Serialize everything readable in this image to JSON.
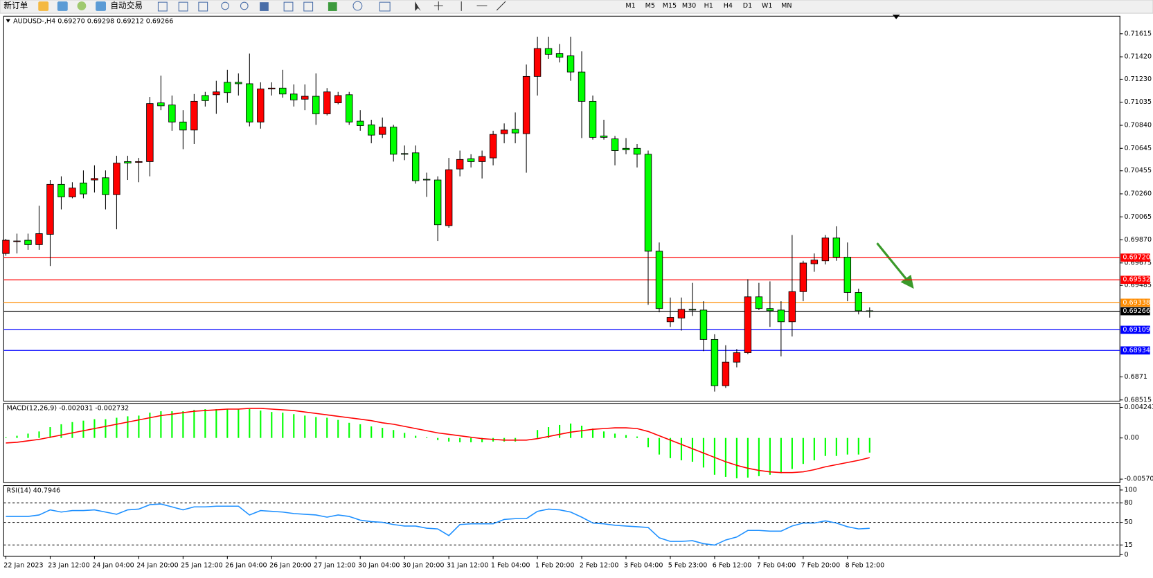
{
  "toolbar": {
    "new_order": "新订单",
    "auto_trading": "自动交易",
    "timeframes": [
      "M1",
      "M5",
      "M15",
      "M30",
      "H1",
      "H4",
      "D1",
      "W1",
      "MN"
    ]
  },
  "chart_data": [
    {
      "type": "candlestick",
      "title": "AUDUSD-,H4  0.69270 0.69298 0.69212 0.69266",
      "categories": [
        "22 Jan 2023",
        null,
        null,
        null,
        "23 Jan 12:00",
        null,
        null,
        null,
        "24 Jan 04:00",
        null,
        null,
        null,
        "24 Jan 20:00",
        null,
        null,
        null,
        "25 Jan 12:00",
        null,
        null,
        null,
        "26 Jan 04:00",
        null,
        null,
        null,
        "26 Jan 20:00",
        null,
        null,
        null,
        "27 Jan 12:00",
        null,
        null,
        null,
        "30 Jan 04:00",
        null,
        null,
        null,
        "30 Jan 20:00",
        null,
        null,
        null,
        "31 Jan 12:00",
        null,
        null,
        null,
        "1 Feb 04:00",
        null,
        null,
        null,
        "1 Feb 20:00",
        null,
        null,
        null,
        "2 Feb 12:00",
        null,
        null,
        null,
        "3 Feb 04:00",
        null,
        null,
        null,
        "5 Feb 23:00",
        null,
        null,
        null,
        "6 Feb 12:00",
        null,
        null,
        null,
        "7 Feb 04:00",
        null,
        null,
        null,
        "7 Feb 20:00",
        null,
        null,
        null,
        "8 Feb 12:00",
        null,
        null
      ],
      "open": [
        0.69755,
        0.69855,
        0.69867,
        0.6983,
        0.69917,
        0.7034,
        0.70234,
        0.70352,
        0.70377,
        0.70396,
        0.70253,
        0.70533,
        0.70526,
        0.70533,
        0.7103,
        0.71012,
        0.70868,
        0.708,
        0.71092,
        0.71099,
        0.71204,
        0.71204,
        0.71192,
        0.70868,
        0.71148,
        0.71155,
        0.71105,
        0.71061,
        0.71086,
        0.70937,
        0.7103,
        0.71099,
        0.70875,
        0.70844,
        0.70763,
        0.70825,
        0.70601,
        0.70607,
        0.70383,
        0.70377,
        0.69991,
        0.7047,
        0.70557,
        0.70533,
        0.70564,
        0.70769,
        0.70806,
        0.70769,
        0.71254,
        0.7149,
        0.71447,
        0.71428,
        0.71291,
        0.71043,
        0.7075,
        0.70725,
        0.70645,
        0.70645,
        0.70595,
        0.69774,
        0.69177,
        0.69208,
        0.69282,
        0.69276,
        0.69027,
        0.68635,
        0.68835,
        0.68915,
        0.69388,
        0.69289,
        0.69276,
        0.69177,
        0.69432,
        0.69668,
        0.69693,
        0.69886,
        0.69724,
        0.69425,
        0.6927
      ],
      "high": [
        0.69879,
        0.69923,
        0.69923,
        0.70159,
        0.70377,
        0.70408,
        0.70358,
        0.70458,
        0.70501,
        0.70458,
        0.70582,
        0.70582,
        0.70564,
        0.7108,
        0.7126,
        0.71092,
        0.70968,
        0.71105,
        0.71123,
        0.71217,
        0.7131,
        0.71279,
        0.71447,
        0.71204,
        0.71204,
        0.7131,
        0.71186,
        0.71186,
        0.71279,
        0.71155,
        0.71123,
        0.71123,
        0.70968,
        0.70887,
        0.70906,
        0.70844,
        0.70669,
        0.70669,
        0.70439,
        0.70408,
        0.70564,
        0.70626,
        0.70595,
        0.70626,
        0.70794,
        0.70856,
        0.70949,
        0.71354,
        0.7159,
        0.7159,
        0.71528,
        0.7159,
        0.71466,
        0.71092,
        0.70887,
        0.7075,
        0.70732,
        0.70682,
        0.70626,
        0.69848,
        0.69382,
        0.69382,
        0.69506,
        0.69351,
        0.69071,
        0.68978,
        0.68946,
        0.69537,
        0.69506,
        0.69519,
        0.69351,
        0.69911,
        0.69693,
        0.69755,
        0.69911,
        0.69985,
        0.69848,
        0.69457,
        0.69298
      ],
      "low": [
        0.69736,
        0.69755,
        0.69786,
        0.69786,
        0.69649,
        0.70128,
        0.70222,
        0.70222,
        0.70271,
        0.70128,
        0.6996,
        0.70377,
        0.70358,
        0.70408,
        0.70968,
        0.70794,
        0.70638,
        0.70682,
        0.70999,
        0.70937,
        0.7103,
        0.71092,
        0.70831,
        0.70812,
        0.71092,
        0.71074,
        0.70999,
        0.70968,
        0.70844,
        0.70924,
        0.71018,
        0.70844,
        0.70794,
        0.70688,
        0.70732,
        0.70533,
        0.70545,
        0.70346,
        0.70234,
        0.69861,
        0.69973,
        0.70408,
        0.70483,
        0.7039,
        0.70501,
        0.70688,
        0.70688,
        0.70439,
        0.71092,
        0.71403,
        0.71372,
        0.71217,
        0.70732,
        0.70719,
        0.70719,
        0.70501,
        0.70595,
        0.70483,
        0.6932,
        0.69257,
        0.69133,
        0.69102,
        0.69226,
        0.68928,
        0.68586,
        0.68617,
        0.68791,
        0.68903,
        0.69276,
        0.69133,
        0.68884,
        0.69052,
        0.69351,
        0.696,
        0.69662,
        0.69693,
        0.69351,
        0.69239,
        0.69212
      ],
      "close": [
        0.69867,
        0.69861,
        0.6983,
        0.69923,
        0.7034,
        0.70234,
        0.70309,
        0.70259,
        0.7039,
        0.70253,
        0.7052,
        0.7052,
        0.70533,
        0.71024,
        0.71005,
        0.70868,
        0.708,
        0.71043,
        0.71049,
        0.71123,
        0.71117,
        0.71192,
        0.70868,
        0.71148,
        0.71155,
        0.71105,
        0.71055,
        0.71086,
        0.70937,
        0.71123,
        0.71092,
        0.70868,
        0.70837,
        0.70757,
        0.70825,
        0.70595,
        0.70595,
        0.70371,
        0.70377,
        0.69998,
        0.70464,
        0.70551,
        0.70533,
        0.70576,
        0.70763,
        0.708,
        0.70775,
        0.71254,
        0.7149,
        0.71441,
        0.71416,
        0.71291,
        0.71043,
        0.70738,
        0.70738,
        0.70626,
        0.70632,
        0.70595,
        0.69774,
        0.69289,
        0.69214,
        0.69282,
        0.69276,
        0.69027,
        0.68635,
        0.68835,
        0.68915,
        0.69388,
        0.69289,
        0.6927,
        0.69177,
        0.69432,
        0.69674,
        0.69699,
        0.69886,
        0.69724,
        0.69425,
        0.6927,
        0.69266
      ],
      "up_color": "#ff0000",
      "down_color": "#00ff00",
      "ylim": [
        0.68505,
        0.71764
      ],
      "yticks": [
        0.71615,
        {
          "value": 0.7142,
          "label": "0.71420"
        },
        {
          "value": 0.7123,
          "label": "0.71230"
        },
        0.71035,
        {
          "value": 0.7084,
          "label": "0.70840"
        },
        0.70645,
        0.70455,
        {
          "value": 0.7026,
          "label": "0.70260"
        },
        0.70065,
        {
          "value": 0.6987,
          "label": "0.69870"
        },
        0.69675,
        0.69485,
        0.6871,
        0.68515
      ],
      "levels": [
        {
          "value": 0.6972,
          "label": "0.69720",
          "color": "#ff0000"
        },
        {
          "value": 0.69532,
          "color": "#ff0000"
        },
        {
          "value": 0.69338,
          "color": "#ff8c00"
        },
        {
          "value": 0.69266,
          "color": "#000000"
        },
        {
          "value": 0.69109,
          "color": "#0000ff"
        },
        {
          "value": 0.68934,
          "color": "#0000ff"
        }
      ]
    },
    {
      "type": "bar",
      "title": "MACD(12,26,9) -0.002031 -0.002732",
      "series": [
        {
          "color": "#00ff00",
          "values": [
            0.0001,
            0.0003,
            0.0006,
            0.0009,
            0.0015,
            0.0019,
            0.0022,
            0.0024,
            0.0026,
            0.0026,
            0.0028,
            0.003,
            0.0031,
            0.0035,
            0.0037,
            0.0037,
            0.0037,
            0.0039,
            0.004,
            0.004,
            0.004,
            0.004,
            0.004,
            0.0038,
            0.0036,
            0.0035,
            0.0033,
            0.0031,
            0.0029,
            0.0028,
            0.0025,
            0.0021,
            0.0019,
            0.0016,
            0.0014,
            0.0011,
            0.0007,
            0.0003,
            0.0001,
            -0.0003,
            -0.0005,
            -0.0006,
            -0.0006,
            -0.0006,
            -0.0005,
            -0.0005,
            -0.0005,
            0,
            0.0011,
            0.0015,
            0.0018,
            0.002,
            0.0017,
            0.0013,
            0.0009,
            0.0006,
            0.0004,
            0.0002,
            -0.0013,
            -0.0023,
            -0.0028,
            -0.0031,
            -0.0033,
            -0.0041,
            -0.0051,
            -0.0054,
            -0.0056,
            -0.0055,
            -0.0053,
            -0.0051,
            -0.0049,
            -0.0043,
            -0.0036,
            -0.0031,
            -0.0025,
            -0.0025,
            -0.0023,
            -0.0023,
            -0.002031
          ]
        },
        {
          "type": "line",
          "color": "#ff0000",
          "values": [
            -0.0007,
            -0.0006,
            -0.0004,
            -0.0002,
            0.0001,
            0.0004,
            0.0007,
            0.001,
            0.0013,
            0.0016,
            0.0019,
            0.0022,
            0.0025,
            0.0028,
            0.0031,
            0.0033,
            0.0035,
            0.0037,
            0.0038,
            0.0039,
            0.004,
            0.004,
            0.0041,
            0.0041,
            0.004,
            0.0039,
            0.0038,
            0.0036,
            0.0034,
            0.0032,
            0.003,
            0.0028,
            0.0026,
            0.0024,
            0.0021,
            0.0019,
            0.0016,
            0.0013,
            0.001,
            0.0007,
            0.0005,
            0.0003,
            0.0001,
            -0.0001,
            -0.0002,
            -0.0003,
            -0.0003,
            -0.0003,
            -0.0001,
            0.0002,
            0.0005,
            0.0008,
            0.001,
            0.0012,
            0.0013,
            0.0014,
            0.0014,
            0.0013,
            0.0009,
            0.0003,
            -0.0003,
            -0.0009,
            -0.0015,
            -0.0021,
            -0.0027,
            -0.0033,
            -0.0038,
            -0.0042,
            -0.0045,
            -0.0047,
            -0.0048,
            -0.0048,
            -0.0047,
            -0.0044,
            -0.004,
            -0.0037,
            -0.0034,
            -0.0031,
            -0.002732
          ]
        }
      ],
      "ylim": [
        -0.0062,
        0.0048
      ],
      "yticks": [
        0.004243,
        {
          "value": 0,
          "label": "0.00"
        },
        -0.005709
      ]
    },
    {
      "type": "line",
      "title": "RSI(14) 40.7946",
      "series": [
        {
          "color": "#1e90ff",
          "values": [
            59.1,
            59.1,
            59.1,
            61.4,
            69.3,
            65.9,
            68.2,
            68.2,
            69.3,
            65.9,
            62.5,
            69.3,
            70.5,
            77.3,
            78.4,
            73.9,
            69.3,
            73.9,
            73.9,
            75.0,
            75.0,
            75.0,
            61.4,
            68.2,
            67.0,
            65.9,
            63.6,
            62.5,
            61.4,
            58.0,
            61.4,
            59.1,
            53.4,
            51.1,
            50.0,
            46.6,
            44.3,
            44.3,
            40.9,
            39.8,
            29.5,
            46.6,
            47.7,
            47.7,
            47.7,
            54.5,
            55.7,
            55.7,
            67.0,
            70.5,
            69.3,
            65.9,
            58.0,
            48.9,
            47.7,
            45.5,
            44.3,
            43.2,
            42.0,
            26.1,
            20.5,
            20.5,
            21.6,
            17.0,
            14.8,
            22.7,
            27.3,
            37.5,
            37.5,
            36.4,
            36.4,
            44.3,
            48.9,
            48.9,
            52.3,
            48.9,
            43.2,
            39.8,
            40.7946
          ]
        }
      ],
      "ylim": [
        0,
        100
      ],
      "yticks": [
        100,
        80,
        50,
        15,
        0
      ],
      "levels": [
        80,
        50,
        15
      ]
    }
  ]
}
